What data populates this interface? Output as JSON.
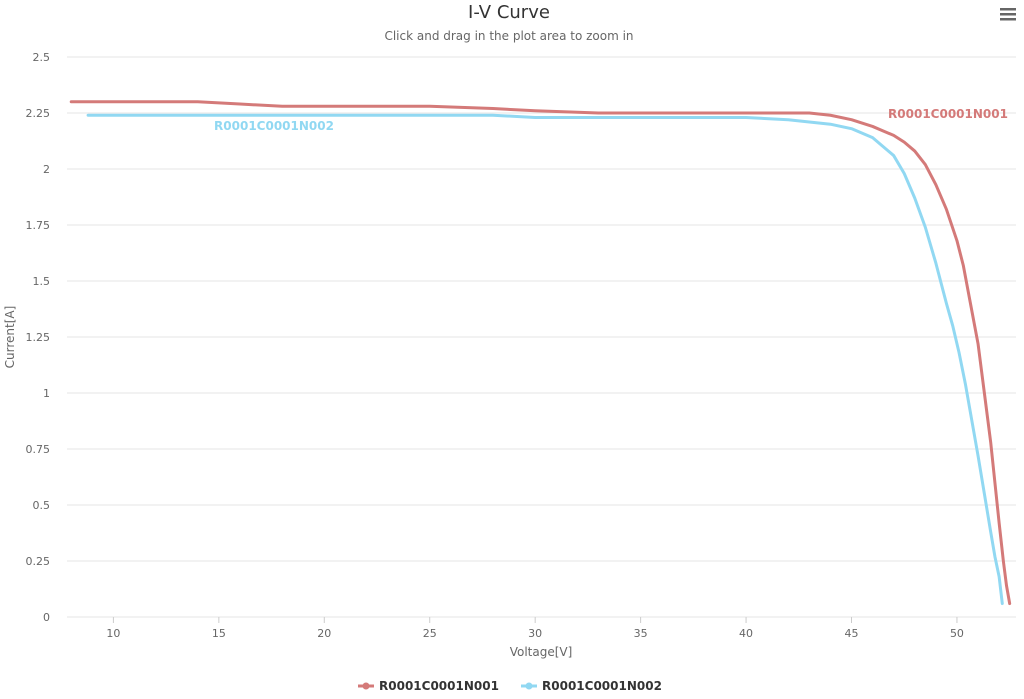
{
  "chart_data": {
    "type": "line",
    "title": "I-V Curve",
    "subtitle": "Click and drag in the plot area to zoom in",
    "xlabel": "Voltage[V]",
    "ylabel": "Current[A]",
    "xlim": [
      7.8,
      52.8
    ],
    "ylim": [
      0,
      2.5
    ],
    "x_ticks": [
      10,
      15,
      20,
      25,
      30,
      35,
      40,
      45,
      50
    ],
    "x_tick_labels": [
      "10",
      "15",
      "20",
      "25",
      "30",
      "35",
      "40",
      "45",
      "50"
    ],
    "y_ticks": [
      0,
      0.25,
      0.5,
      0.75,
      1,
      1.25,
      1.5,
      1.75,
      2,
      2.25,
      2.5
    ],
    "y_tick_labels": [
      "0",
      "0.25",
      "0.5",
      "0.75",
      "1",
      "1.25",
      "1.5",
      "1.75",
      "2",
      "2.25",
      "2.5"
    ],
    "grid": true,
    "legend_position": "bottom-center",
    "series": [
      {
        "name": "R0001C0001N001",
        "color": "#d47a79",
        "x": [
          8,
          10,
          12,
          14,
          16,
          18,
          20,
          22,
          25,
          28,
          30,
          33,
          36,
          40,
          43,
          44,
          45,
          46,
          47,
          47.5,
          48,
          48.5,
          49,
          49.5,
          50,
          50.3,
          50.6,
          51,
          51.3,
          51.6,
          51.8,
          52,
          52.2,
          52.35,
          52.5
        ],
        "y": [
          2.3,
          2.3,
          2.3,
          2.3,
          2.29,
          2.28,
          2.28,
          2.28,
          2.28,
          2.27,
          2.26,
          2.25,
          2.25,
          2.25,
          2.25,
          2.24,
          2.22,
          2.19,
          2.15,
          2.12,
          2.08,
          2.02,
          1.93,
          1.82,
          1.68,
          1.57,
          1.42,
          1.22,
          1.0,
          0.78,
          0.6,
          0.42,
          0.25,
          0.14,
          0.06
        ]
      },
      {
        "name": "R0001C0001N002",
        "color": "#91d8f2",
        "x": [
          8.8,
          10,
          12,
          14,
          16,
          18,
          20,
          22,
          25,
          28,
          30,
          33,
          36,
          40,
          42,
          43,
          44,
          45,
          46,
          46.5,
          47,
          47.5,
          48,
          48.5,
          49,
          49.5,
          49.8,
          50.1,
          50.4,
          50.7,
          51,
          51.3,
          51.6,
          51.8,
          52,
          52.15
        ],
        "y": [
          2.24,
          2.24,
          2.24,
          2.24,
          2.24,
          2.24,
          2.24,
          2.24,
          2.24,
          2.24,
          2.23,
          2.23,
          2.23,
          2.23,
          2.22,
          2.21,
          2.2,
          2.18,
          2.14,
          2.1,
          2.06,
          1.98,
          1.87,
          1.74,
          1.58,
          1.4,
          1.3,
          1.18,
          1.04,
          0.88,
          0.72,
          0.55,
          0.38,
          0.27,
          0.18,
          0.06
        ]
      }
    ]
  },
  "series_labels": {
    "s1": "R0001C0001N001",
    "s2": "R0001C0001N002"
  },
  "menu_icon": "hamburger-menu-icon"
}
